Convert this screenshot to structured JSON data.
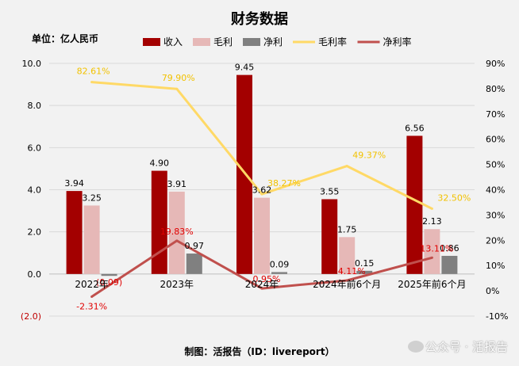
{
  "header": {
    "title": "财务数据",
    "unit": "单位：亿人民币"
  },
  "footer": {
    "credit": "制图：活报告（ID：livereport）",
    "watermark": "公众号 · 活报告"
  },
  "colors": {
    "revenue": "#a30000",
    "gross_profit": "#e6b8b7",
    "net_profit": "#808080",
    "gross_margin": "#ffd966",
    "net_margin": "#c0504d",
    "gross_margin_label": "#f2c200",
    "net_margin_label": "#e00000"
  },
  "chart_data": {
    "type": "bar",
    "title": "财务数据",
    "ylabel": "单位：亿人民币",
    "ylim": [
      -2,
      10
    ],
    "yticks": [
      -2,
      0,
      2,
      4,
      6,
      8,
      10
    ],
    "ytick_labels": [
      "(2.0)",
      "0.0",
      "2.0",
      "4.0",
      "6.0",
      "8.0",
      "10.0"
    ],
    "y2lim": [
      -10,
      90
    ],
    "y2ticks": [
      -10,
      0,
      10,
      20,
      30,
      40,
      50,
      60,
      70,
      80,
      90
    ],
    "y2tick_labels": [
      "-10%",
      "0%",
      "10%",
      "20%",
      "30%",
      "40%",
      "50%",
      "60%",
      "70%",
      "80%",
      "90%"
    ],
    "categories": [
      "2022年",
      "2023年",
      "2024年",
      "2024年前6个月",
      "2025年前6个月"
    ],
    "series": [
      {
        "name": "收入",
        "type": "bar",
        "axis": "left",
        "values": [
          3.94,
          4.9,
          9.45,
          3.55,
          6.56
        ],
        "labels": [
          "3.94",
          "4.90",
          "9.45",
          "3.55",
          "6.56"
        ]
      },
      {
        "name": "毛利",
        "type": "bar",
        "axis": "left",
        "values": [
          3.25,
          3.91,
          3.62,
          1.75,
          2.13
        ],
        "labels": [
          "3.25",
          "3.91",
          "3.62",
          "1.75",
          "2.13"
        ]
      },
      {
        "name": "净利",
        "type": "bar",
        "axis": "left",
        "values": [
          -0.09,
          0.97,
          0.09,
          0.15,
          0.86
        ],
        "labels": [
          "(0.09)",
          "0.97",
          "0.09",
          "0.15",
          "0.86"
        ]
      },
      {
        "name": "毛利率",
        "type": "line",
        "axis": "right",
        "values": [
          82.61,
          79.9,
          38.27,
          49.37,
          32.5
        ],
        "labels": [
          "82.61%",
          "79.90%",
          "38.27%",
          "49.37%",
          "32.50%"
        ]
      },
      {
        "name": "净利率",
        "type": "line",
        "axis": "right",
        "values": [
          -2.31,
          19.83,
          0.95,
          4.11,
          13.11
        ],
        "labels": [
          "-2.31%",
          "19.83%",
          "0.95%",
          "4.11%",
          "13.11%"
        ]
      }
    ],
    "legend": {
      "position": "top",
      "items": [
        "收入",
        "毛利",
        "净利",
        "毛利率",
        "净利率"
      ]
    },
    "grid": true
  }
}
